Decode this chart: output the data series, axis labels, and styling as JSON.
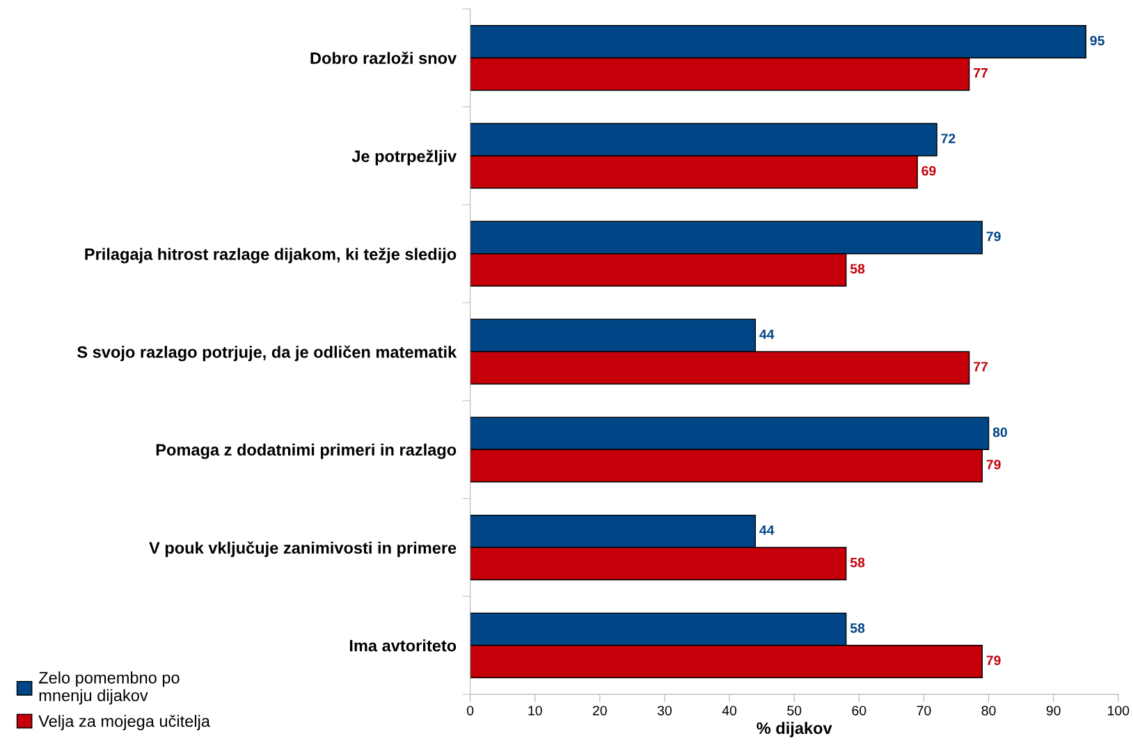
{
  "chart_data": {
    "type": "bar",
    "orientation": "horizontal",
    "xlabel": "% dijakov",
    "categories": [
      "Dobro razloži snov",
      "Je potrpežljiv",
      "Prilagaja hitrost razlage dijakom, ki težje sledijo",
      "S svojo razlago potrjuje, da je odličen matematik",
      "Pomaga z dodatnimi primeri in razlago",
      "V pouk vključuje zanimivosti in primere",
      "Ima avtoriteto"
    ],
    "series": [
      {
        "name": "Zelo pomembno po\nmnenju dijakov",
        "color": "#004586",
        "values": [
          95,
          72,
          79,
          44,
          80,
          44,
          58
        ]
      },
      {
        "name": "Velja za mojega učitelja",
        "color": "#c5000b",
        "values": [
          77,
          69,
          58,
          77,
          79,
          58,
          79
        ]
      }
    ],
    "xlim": [
      0,
      100
    ],
    "xticks": [
      0,
      10,
      20,
      30,
      40,
      50,
      60,
      70,
      80,
      90,
      100
    ],
    "data_labels": true,
    "grid": false,
    "legend": "bottom left"
  }
}
